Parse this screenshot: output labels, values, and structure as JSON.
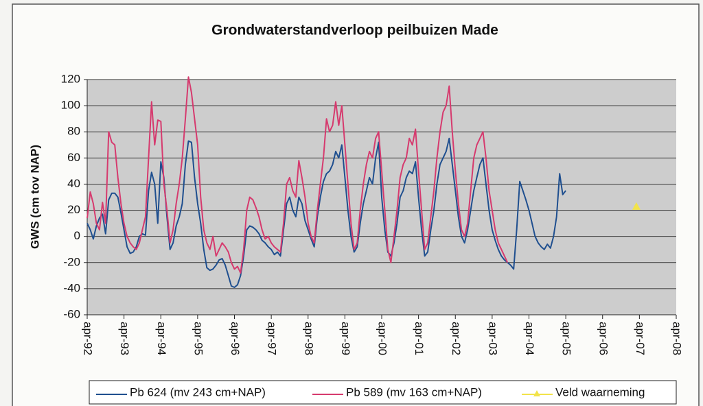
{
  "chart_data": {
    "type": "line",
    "title": "Grondwaterstandverloop peilbuizen Made",
    "y_label": "GWS (cm tov NAP)",
    "x": [
      "1992-04",
      "1992-05",
      "1992-06",
      "1992-07",
      "1992-08",
      "1992-09",
      "1992-10",
      "1992-11",
      "1992-12",
      "1993-01",
      "1993-02",
      "1993-03",
      "1993-04",
      "1993-05",
      "1993-06",
      "1993-07",
      "1993-08",
      "1993-09",
      "1993-10",
      "1993-11",
      "1993-12",
      "1994-01",
      "1994-02",
      "1994-03",
      "1994-04",
      "1994-05",
      "1994-06",
      "1994-07",
      "1994-08",
      "1994-09",
      "1994-10",
      "1994-11",
      "1994-12",
      "1995-01",
      "1995-02",
      "1995-03",
      "1995-04",
      "1995-05",
      "1995-06",
      "1995-07",
      "1995-08",
      "1995-09",
      "1995-10",
      "1995-11",
      "1995-12",
      "1996-01",
      "1996-02",
      "1996-03",
      "1996-04",
      "1996-05",
      "1996-06",
      "1996-07",
      "1996-08",
      "1996-09",
      "1996-10",
      "1996-11",
      "1996-12",
      "1997-01",
      "1997-02",
      "1997-03",
      "1997-04",
      "1997-05",
      "1997-06",
      "1997-07",
      "1997-08",
      "1997-09",
      "1997-10",
      "1997-11",
      "1997-12",
      "1998-01",
      "1998-02",
      "1998-03",
      "1998-04",
      "1998-05",
      "1998-06",
      "1998-07",
      "1998-08",
      "1998-09",
      "1998-10",
      "1998-11",
      "1998-12",
      "1999-01",
      "1999-02",
      "1999-03",
      "1999-04",
      "1999-05",
      "1999-06",
      "1999-07",
      "1999-08",
      "1999-09",
      "1999-10",
      "1999-11",
      "1999-12",
      "2000-01",
      "2000-02",
      "2000-03",
      "2000-04",
      "2000-05",
      "2000-06",
      "2000-07",
      "2000-08",
      "2000-09",
      "2000-10",
      "2000-11",
      "2000-12",
      "2001-01",
      "2001-02",
      "2001-03",
      "2001-04",
      "2001-05",
      "2001-06",
      "2001-07",
      "2001-08",
      "2001-09",
      "2001-10",
      "2001-11",
      "2001-12",
      "2002-01",
      "2002-02",
      "2002-03",
      "2002-04",
      "2002-05",
      "2002-06",
      "2002-07",
      "2002-08",
      "2002-09",
      "2002-10",
      "2002-11",
      "2002-12",
      "2003-01",
      "2003-02",
      "2003-03",
      "2003-04",
      "2003-05",
      "2003-06",
      "2003-07",
      "2003-08",
      "2003-09",
      "2003-10",
      "2003-11",
      "2003-12",
      "2004-01",
      "2004-02",
      "2004-03",
      "2004-04",
      "2004-05",
      "2004-06",
      "2004-07",
      "2004-08",
      "2004-09",
      "2004-10",
      "2004-11",
      "2004-12",
      "2005-01",
      "2005-02",
      "2005-03",
      "2005-04"
    ],
    "series": [
      {
        "name": "Pb 624 (mv 243 cm+NAP)",
        "color": "#1f4f8f",
        "values": [
          10,
          5,
          -2,
          8,
          14,
          17,
          2,
          28,
          33,
          33,
          30,
          18,
          5,
          -8,
          -13,
          -12,
          -8,
          0,
          2,
          1,
          35,
          49,
          40,
          10,
          57,
          45,
          15,
          -10,
          -5,
          8,
          15,
          25,
          55,
          73,
          72,
          45,
          25,
          10,
          -10,
          -24,
          -26,
          -25,
          -22,
          -18,
          -17,
          -22,
          -30,
          -38,
          -39,
          -37,
          -30,
          -15,
          5,
          8,
          7,
          5,
          2,
          -3,
          -5,
          -8,
          -10,
          -14,
          -12,
          -15,
          5,
          25,
          30,
          20,
          15,
          30,
          25,
          12,
          5,
          -2,
          -8,
          15,
          30,
          42,
          48,
          50,
          55,
          65,
          60,
          70,
          45,
          20,
          0,
          -12,
          -8,
          10,
          25,
          35,
          45,
          40,
          60,
          72,
          30,
          5,
          -12,
          -15,
          -5,
          10,
          30,
          35,
          45,
          50,
          48,
          57,
          30,
          5,
          -15,
          -12,
          5,
          20,
          40,
          55,
          60,
          65,
          75,
          55,
          35,
          15,
          0,
          -5,
          5,
          20,
          35,
          45,
          55,
          60,
          40,
          20,
          5,
          -3,
          -10,
          -15,
          -18,
          -20,
          -22,
          -25,
          5,
          42,
          35,
          28,
          20,
          10,
          0,
          -5,
          -8,
          -10,
          -6,
          -9,
          0,
          15,
          48,
          32,
          35
        ]
      },
      {
        "name": "Pb 589 (mv 163 cm+NAP)",
        "color": "#d63a6e",
        "values": [
          14,
          34,
          25,
          10,
          5,
          26,
          10,
          80,
          72,
          70,
          45,
          25,
          10,
          0,
          -5,
          -8,
          -10,
          -5,
          5,
          15,
          60,
          103,
          70,
          89,
          88,
          40,
          20,
          -5,
          5,
          25,
          40,
          60,
          90,
          122,
          110,
          90,
          70,
          30,
          5,
          -5,
          -10,
          0,
          -15,
          -10,
          -5,
          -8,
          -12,
          -20,
          -25,
          -23,
          -28,
          -10,
          20,
          30,
          28,
          22,
          15,
          5,
          -2,
          0,
          -5,
          -8,
          -10,
          -12,
          10,
          40,
          45,
          35,
          30,
          58,
          45,
          30,
          10,
          0,
          -5,
          20,
          40,
          60,
          90,
          80,
          85,
          103,
          85,
          100,
          70,
          40,
          10,
          -10,
          -5,
          20,
          40,
          55,
          65,
          60,
          75,
          80,
          50,
          20,
          -10,
          -20,
          0,
          20,
          45,
          55,
          60,
          75,
          70,
          82,
          50,
          20,
          -10,
          -5,
          15,
          35,
          60,
          80,
          95,
          100,
          115,
          80,
          50,
          25,
          5,
          0,
          10,
          35,
          60,
          70,
          75,
          80,
          60,
          35,
          20,
          5,
          -5,
          -10,
          -15,
          -20,
          null,
          null,
          null,
          null,
          null,
          null,
          null,
          null,
          null,
          null,
          null,
          null,
          null,
          null,
          null,
          null,
          null,
          null,
          null
        ]
      },
      {
        "name": "Veld waarneming",
        "color": "#f2e34a",
        "x": [
          "2007-03"
        ],
        "values": [
          23
        ]
      }
    ],
    "xlim": [
      "1992-04",
      "2008-04"
    ],
    "xticks": [
      {
        "value": "1992-04",
        "label": "apr-92"
      },
      {
        "value": "1993-04",
        "label": "apr-93"
      },
      {
        "value": "1994-04",
        "label": "apr-94"
      },
      {
        "value": "1995-04",
        "label": "apr-95"
      },
      {
        "value": "1996-04",
        "label": "apr-96"
      },
      {
        "value": "1997-04",
        "label": "apr-97"
      },
      {
        "value": "1998-04",
        "label": "apr-98"
      },
      {
        "value": "1999-04",
        "label": "apr-99"
      },
      {
        "value": "2000-04",
        "label": "apr-00"
      },
      {
        "value": "2001-04",
        "label": "apr-01"
      },
      {
        "value": "2002-04",
        "label": "apr-02"
      },
      {
        "value": "2003-04",
        "label": "apr-03"
      },
      {
        "value": "2004-04",
        "label": "apr-04"
      },
      {
        "value": "2005-04",
        "label": "apr-05"
      },
      {
        "value": "2006-04",
        "label": "apr-06"
      },
      {
        "value": "2007-04",
        "label": "apr-07"
      },
      {
        "value": "2008-04",
        "label": "apr-08"
      }
    ],
    "ylim": [
      -60,
      120
    ],
    "yticks": [
      -60,
      -40,
      -20,
      0,
      20,
      40,
      60,
      80,
      100,
      120
    ],
    "grid": true
  }
}
